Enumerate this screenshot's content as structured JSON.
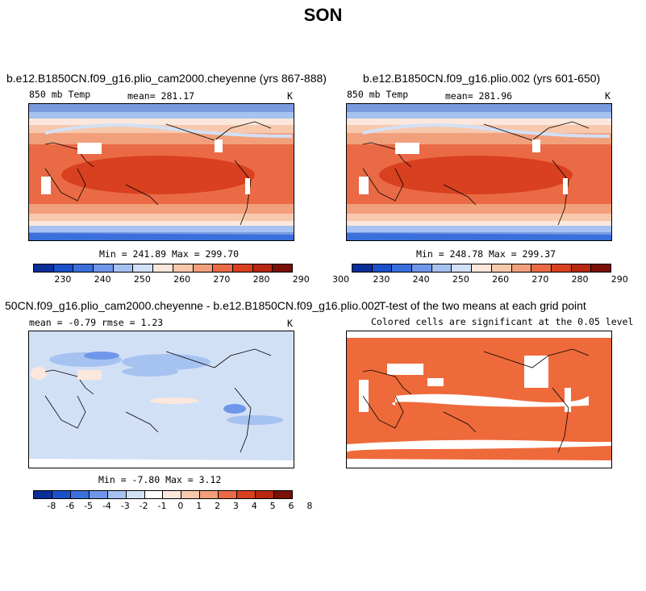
{
  "figure_title": "SON",
  "panels": [
    {
      "title": "b.e12.B1850CN.f09_g16.plio_cam2000.cheyenne (yrs 867-888)",
      "var_label": "850 mb Temp",
      "stat_label": "mean= 281.17",
      "units": "K",
      "minmax": "Min = 241.89 Max = 299.70"
    },
    {
      "title": "b.e12.B1850CN.f09_g16.plio.002 (yrs 601-650)",
      "var_label": "850 mb Temp",
      "stat_label": "mean= 281.96",
      "units": "K",
      "minmax": "Min = 248.78 Max = 299.37"
    },
    {
      "title": "50CN.f09_g16.plio_cam2000.cheyenne - b.e12.B1850CN.f09_g16.plio.002",
      "var_label": "mean =   -0.79     rmse =    1.23",
      "units": "K",
      "minmax": "Min =  -7.80 Max =    3.12"
    },
    {
      "title": "T-test of the two means at each grid point",
      "subtitle": "Colored cells are significant at the 0.05 level"
    }
  ],
  "temp_colorbar": {
    "colors": [
      "#0a2f96",
      "#1a50c8",
      "#3a6fdc",
      "#6f96e8",
      "#a6c2f0",
      "#d2e0f6",
      "#fbe7dc",
      "#f8c8ad",
      "#f2a07c",
      "#ea6a45",
      "#d8401f",
      "#b82810",
      "#7a1006"
    ],
    "ticks": [
      "230",
      "240",
      "250",
      "260",
      "270",
      "280",
      "290",
      "300"
    ]
  },
  "diff_colorbar": {
    "colors": [
      "#0a2f96",
      "#1a50c8",
      "#3a6fdc",
      "#6f96e8",
      "#a6c2f0",
      "#d2e0f6",
      "#ffffff",
      "#fbe7dc",
      "#f8c8ad",
      "#f2a07c",
      "#ea6a45",
      "#d8401f",
      "#b82810",
      "#7a1006"
    ],
    "ticks": [
      "-8",
      "-6",
      "-5",
      "-4",
      "-3",
      "-2",
      "-1",
      "0",
      "1",
      "2",
      "3",
      "4",
      "5",
      "6",
      "8"
    ]
  },
  "ttest_color": "#ee6a3a"
}
